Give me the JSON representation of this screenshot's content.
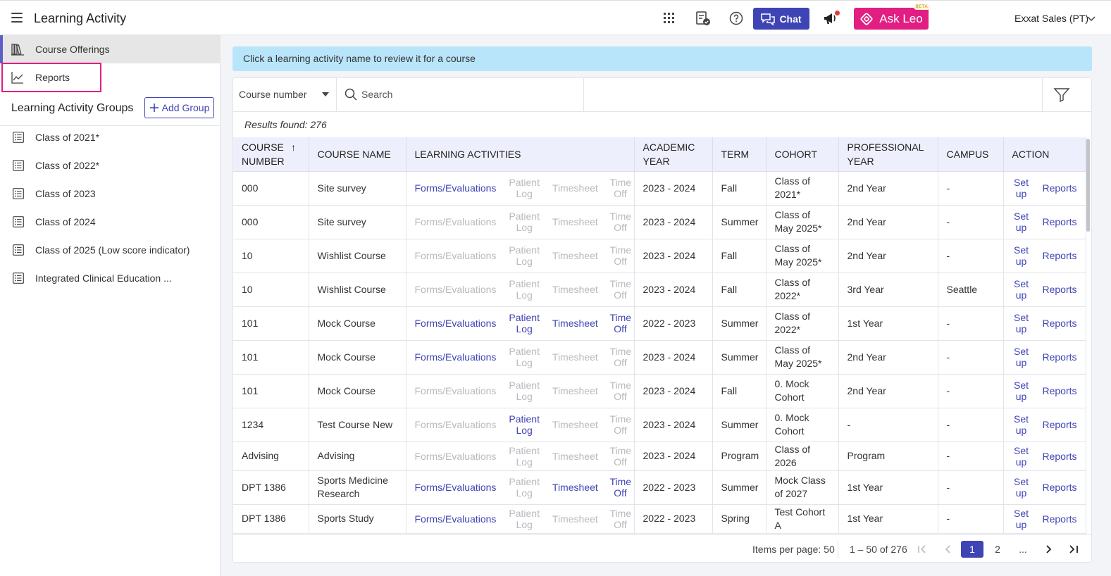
{
  "header": {
    "title": "Learning Activity",
    "chat_label": "Chat",
    "leo_label": "Ask Leo",
    "beta": "BETA",
    "user": "Exxat Sales (PT)"
  },
  "sidebar": {
    "nav": [
      {
        "label": "Course Offerings"
      },
      {
        "label": "Reports"
      }
    ],
    "groups_title": "Learning Activity Groups",
    "add_group": "Add Group",
    "groups": [
      {
        "label": "Class of 2021*"
      },
      {
        "label": "Class of 2022*"
      },
      {
        "label": "Class of 2023"
      },
      {
        "label": "Class of 2024"
      },
      {
        "label": "Class of 2025 (Low score indicator)"
      },
      {
        "label": "Integrated Clinical Education ..."
      }
    ]
  },
  "banner": "Click a learning activity name to review it for a course",
  "filters": {
    "course_select": "Course number",
    "search_placeholder": "Search"
  },
  "results": "Results found: 276",
  "table": {
    "headers": [
      "COURSE NUMBER",
      "COURSE NAME",
      "LEARNING ACTIVITIES",
      "ACADEMIC YEAR",
      "TERM",
      "COHORT",
      "PROFESSIONAL YEAR",
      "CAMPUS",
      "ACTION"
    ],
    "activity_labels": [
      "Forms/Evaluations",
      "Patient Log",
      "Timesheet",
      "Time Off"
    ],
    "action_labels": [
      "Set up",
      "Reports"
    ],
    "rows": [
      {
        "num": "000",
        "name": "Site survey",
        "acts": [
          true,
          false,
          false,
          false
        ],
        "year": "2023 - 2024",
        "term": "Fall",
        "cohort": "Class of 2021*",
        "prof": "2nd Year",
        "campus": "-"
      },
      {
        "num": "000",
        "name": "Site survey",
        "acts": [
          false,
          false,
          false,
          false
        ],
        "year": "2023 - 2024",
        "term": "Summer",
        "cohort": "Class of May 2025*",
        "prof": "2nd Year",
        "campus": "-"
      },
      {
        "num": "10",
        "name": "Wishlist Course",
        "acts": [
          false,
          false,
          false,
          false
        ],
        "year": "2023 - 2024",
        "term": "Fall",
        "cohort": "Class of May 2025*",
        "prof": "2nd Year",
        "campus": "-"
      },
      {
        "num": "10",
        "name": "Wishlist Course",
        "acts": [
          false,
          false,
          false,
          false
        ],
        "year": "2023 - 2024",
        "term": "Fall",
        "cohort": "Class of 2022*",
        "prof": "3rd Year",
        "campus": "Seattle"
      },
      {
        "num": "101",
        "name": "Mock Course",
        "acts": [
          true,
          true,
          true,
          true
        ],
        "year": "2022 - 2023",
        "term": "Summer",
        "cohort": "Class of 2022*",
        "prof": "1st Year",
        "campus": "-"
      },
      {
        "num": "101",
        "name": "Mock Course",
        "acts": [
          true,
          false,
          false,
          false
        ],
        "year": "2023 - 2024",
        "term": "Summer",
        "cohort": "Class of May 2025*",
        "prof": "2nd Year",
        "campus": "-"
      },
      {
        "num": "101",
        "name": "Mock Course",
        "acts": [
          false,
          false,
          false,
          false
        ],
        "year": "2023 - 2024",
        "term": "Fall",
        "cohort": "0. Mock Cohort",
        "prof": "2nd Year",
        "campus": "-"
      },
      {
        "num": "1234",
        "name": "Test Course New",
        "acts": [
          false,
          true,
          false,
          false
        ],
        "year": "2023 - 2024",
        "term": "Summer",
        "cohort": "0. Mock Cohort",
        "prof": "-",
        "campus": "-"
      },
      {
        "num": "Advising",
        "name": "Advising",
        "acts": [
          false,
          false,
          false,
          false
        ],
        "year": "2023 - 2024",
        "term": "Program",
        "cohort": "Class of 2026",
        "prof": "Program",
        "campus": "-"
      },
      {
        "num": "DPT 1386",
        "name": "Sports Medicine Research",
        "acts": [
          true,
          false,
          true,
          true
        ],
        "year": "2022 - 2023",
        "term": "Summer",
        "cohort": "Mock Class of 2027",
        "prof": "1st Year",
        "campus": "-"
      },
      {
        "num": "DPT 1386",
        "name": "Sports Study",
        "acts": [
          true,
          false,
          false,
          false
        ],
        "year": "2022 - 2023",
        "term": "Spring",
        "cohort": "Test Cohort A",
        "prof": "1st Year",
        "campus": "-"
      }
    ]
  },
  "pagination": {
    "items_per_page": "Items per page: 50",
    "range": "1 – 50 of 276",
    "pages": [
      "1",
      "2",
      "..."
    ]
  },
  "colors": {
    "primary": "#3f44b5",
    "leo": "#e21e82",
    "banner": "#b9e5fb",
    "highlight": "#e21e82"
  }
}
